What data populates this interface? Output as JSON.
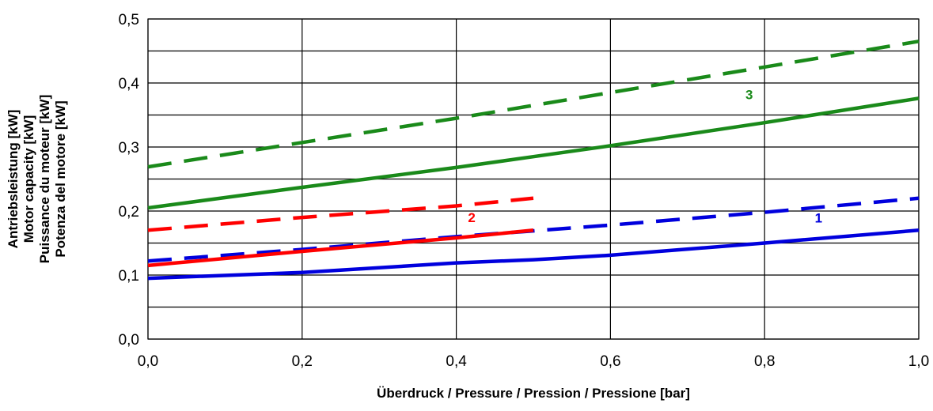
{
  "chart_data": {
    "type": "line",
    "xlabel": "Überdruck / Pressure / Pression / Pressione    [bar]",
    "ylabel_lines": [
      "Antriebsleistung [kW]",
      "Motor capacity [kW]",
      "Puissance du moteur [kW]",
      "Potenza del motore [kW]"
    ],
    "xlim": [
      0,
      1.0
    ],
    "ylim": [
      0,
      0.5
    ],
    "x_ticks": [
      "0,0",
      "0,2",
      "0,4",
      "0,6",
      "0,8",
      "1,0"
    ],
    "y_ticks": [
      "0,0",
      "0,1",
      "0,2",
      "0,3",
      "0,4",
      "0,5"
    ],
    "grid": true,
    "colors": {
      "blue": "#0000dd",
      "red": "#ff0000",
      "green": "#1a8a1a"
    },
    "series": [
      {
        "label": "1",
        "style": "solid",
        "color": "#0000dd",
        "x": [
          0.0,
          0.2,
          0.4,
          0.5,
          0.6,
          0.8,
          1.0
        ],
        "y": [
          0.095,
          0.104,
          0.119,
          0.124,
          0.131,
          0.15,
          0.17
        ]
      },
      {
        "label": "1",
        "style": "dashed",
        "color": "#0000dd",
        "x": [
          0.0,
          0.2,
          0.4,
          0.6,
          0.8,
          1.0
        ],
        "y": [
          0.122,
          0.14,
          0.16,
          0.178,
          0.198,
          0.22
        ]
      },
      {
        "label": "2",
        "style": "solid",
        "color": "#ff0000",
        "x": [
          0.0,
          0.2,
          0.4,
          0.5
        ],
        "y": [
          0.115,
          0.137,
          0.158,
          0.17
        ]
      },
      {
        "label": "2",
        "style": "dashed",
        "color": "#ff0000",
        "x": [
          0.0,
          0.2,
          0.4,
          0.5
        ],
        "y": [
          0.17,
          0.19,
          0.208,
          0.22
        ]
      },
      {
        "label": "3",
        "style": "solid",
        "color": "#1a8a1a",
        "x": [
          0.0,
          0.2,
          0.4,
          0.5,
          0.6,
          0.7,
          0.8,
          1.0
        ],
        "y": [
          0.205,
          0.237,
          0.268,
          0.285,
          0.302,
          0.32,
          0.338,
          0.376
        ]
      },
      {
        "label": "3",
        "style": "dashed",
        "color": "#1a8a1a",
        "x": [
          0.0,
          0.2,
          0.4,
          0.6,
          0.8,
          1.0
        ],
        "y": [
          0.269,
          0.307,
          0.345,
          0.385,
          0.425,
          0.465
        ]
      }
    ],
    "curve_labels": [
      {
        "text": "1",
        "x": 0.87,
        "y": 0.182,
        "color": "#0000dd"
      },
      {
        "text": "2",
        "x": 0.42,
        "y": 0.183,
        "color": "#ff0000"
      },
      {
        "text": "3",
        "x": 0.78,
        "y": 0.375,
        "color": "#1a8a1a"
      }
    ]
  }
}
